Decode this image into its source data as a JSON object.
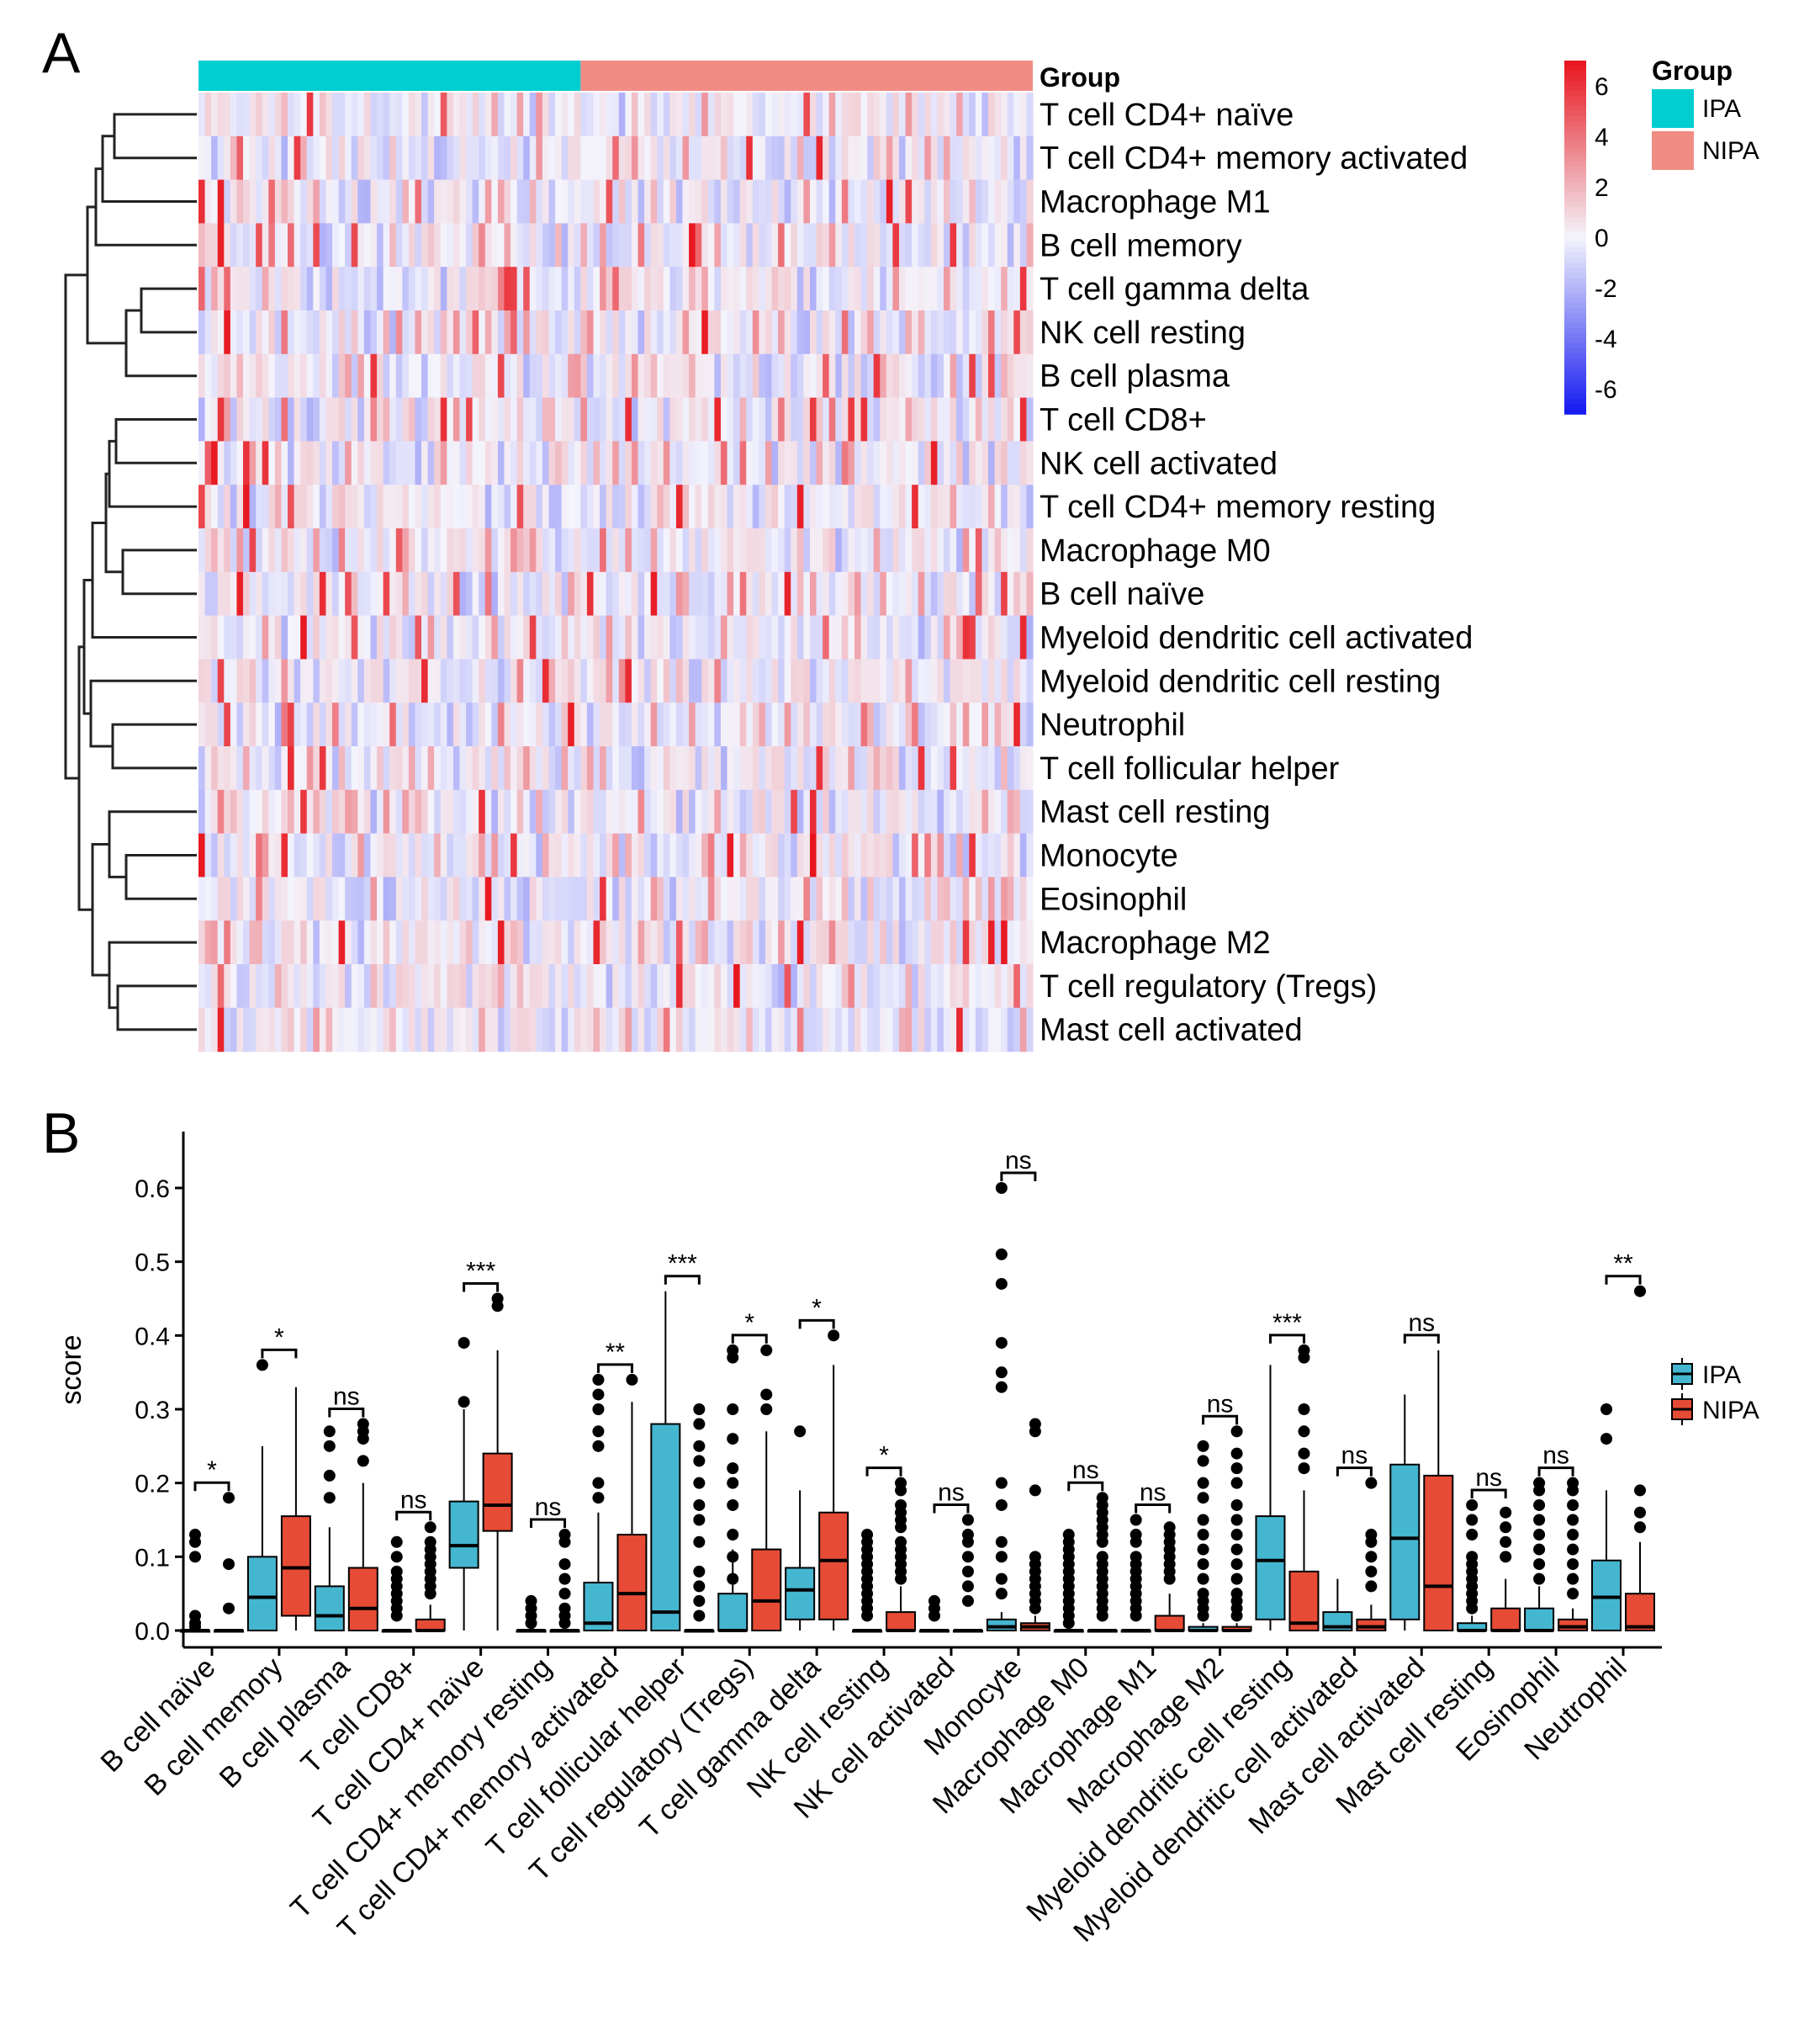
{
  "colors": {
    "ipa": "#00CED1",
    "nipa": "#F08C84",
    "box_ipa": "#45B6D0",
    "box_nipa": "#E64B35",
    "heat_high": "#E8141C",
    "heat_mid": "#F4F4FC",
    "heat_low": "#1419F0"
  },
  "chart_data": [
    {
      "panel": "A",
      "type": "heatmap",
      "annotation_label": "Group",
      "groups": [
        {
          "name": "IPA",
          "n_samples": 60
        },
        {
          "name": "NIPA",
          "n_samples": 71
        }
      ],
      "rows": [
        "T cell CD4+ naïve",
        "T cell CD4+ memory activated",
        "Macrophage M1",
        "B cell memory",
        "T cell gamma delta",
        "NK cell resting",
        "B cell plasma",
        "T cell CD8+",
        "NK cell activated",
        "T cell CD4+ memory resting",
        "Macrophage M0",
        "B cell naïve",
        "Myeloid dendritic cell activated",
        "Myeloid dendritic cell resting",
        "Neutrophil",
        "T cell follicular helper",
        "Mast cell resting",
        "Monocyte",
        "Eosinophil",
        "Macrophage M2",
        "T cell regulatory (Tregs)",
        "Mast cell activated"
      ],
      "color_scale": {
        "min": -7,
        "max": 7,
        "ticks": [
          "6",
          "4",
          "2",
          "0",
          "-2",
          "-4",
          "-6"
        ],
        "tick_values": [
          6,
          4,
          2,
          0,
          -2,
          -4,
          -6
        ]
      },
      "legend_title": "Group",
      "dendrogram": "hierarchical clustering of rows (left)"
    },
    {
      "panel": "B",
      "type": "box",
      "ylabel": "score",
      "ylim": [
        0,
        0.65
      ],
      "yticks": [
        "0.0",
        "0.1",
        "0.2",
        "0.3",
        "0.4",
        "0.5",
        "0.6"
      ],
      "ytick_values": [
        0,
        0.1,
        0.2,
        0.3,
        0.4,
        0.5,
        0.6
      ],
      "legend": [
        "IPA",
        "NIPA"
      ],
      "categories": [
        {
          "name": "B cell naïve",
          "sig": "*",
          "ipa": {
            "q1": 0,
            "med": 0,
            "q3": 0,
            "lo": 0,
            "hi": 0,
            "out": [
              0.13,
              0.12,
              0.1,
              0.02,
              0.01,
              0.005
            ]
          },
          "nipa": {
            "q1": 0,
            "med": 0,
            "q3": 0,
            "lo": 0,
            "hi": 0,
            "out": [
              0.18,
              0.09,
              0.03
            ]
          }
        },
        {
          "name": "B cell memory",
          "sig": "*",
          "ipa": {
            "q1": 0,
            "med": 0.045,
            "q3": 0.1,
            "lo": 0,
            "hi": 0.25,
            "out": [
              0.36
            ]
          },
          "nipa": {
            "q1": 0.02,
            "med": 0.085,
            "q3": 0.155,
            "lo": 0,
            "hi": 0.33,
            "out": []
          }
        },
        {
          "name": "B cell plasma",
          "sig": "ns",
          "ipa": {
            "q1": 0,
            "med": 0.02,
            "q3": 0.06,
            "lo": 0,
            "hi": 0.14,
            "out": [
              0.27,
              0.25,
              0.21,
              0.18
            ]
          },
          "nipa": {
            "q1": 0,
            "med": 0.03,
            "q3": 0.085,
            "lo": 0,
            "hi": 0.2,
            "out": [
              0.28,
              0.27,
              0.26,
              0.23
            ]
          }
        },
        {
          "name": "T cell CD8+",
          "sig": "ns",
          "ipa": {
            "q1": 0,
            "med": 0,
            "q3": 0,
            "lo": 0,
            "hi": 0,
            "out": [
              0.12,
              0.1,
              0.08,
              0.07,
              0.06,
              0.05,
              0.04,
              0.03,
              0.02
            ]
          },
          "nipa": {
            "q1": 0,
            "med": 0,
            "q3": 0.015,
            "lo": 0,
            "hi": 0.035,
            "out": [
              0.14,
              0.12,
              0.11,
              0.1,
              0.09,
              0.08,
              0.07,
              0.06,
              0.05
            ]
          }
        },
        {
          "name": "T cell CD4+ naïve",
          "sig": "***",
          "ipa": {
            "q1": 0.085,
            "med": 0.115,
            "q3": 0.175,
            "lo": 0,
            "hi": 0.3,
            "out": [
              0.39,
              0.31
            ]
          },
          "nipa": {
            "q1": 0.135,
            "med": 0.17,
            "q3": 0.24,
            "lo": 0,
            "hi": 0.38,
            "out": [
              0.45,
              0.44
            ]
          }
        },
        {
          "name": "T cell CD4+ memory resting",
          "sig": "ns",
          "ipa": {
            "q1": 0,
            "med": 0,
            "q3": 0,
            "lo": 0,
            "hi": 0,
            "out": [
              0.04,
              0.03,
              0.02,
              0.01
            ]
          },
          "nipa": {
            "q1": 0,
            "med": 0,
            "q3": 0,
            "lo": 0,
            "hi": 0,
            "out": [
              0.13,
              0.12,
              0.09,
              0.07,
              0.05,
              0.03,
              0.02,
              0.01
            ]
          }
        },
        {
          "name": "T cell CD4+ memory activated",
          "sig": "**",
          "ipa": {
            "q1": 0,
            "med": 0.01,
            "q3": 0.065,
            "lo": 0,
            "hi": 0.16,
            "out": [
              0.34,
              0.32,
              0.3,
              0.27,
              0.25,
              0.2,
              0.18
            ]
          },
          "nipa": {
            "q1": 0,
            "med": 0.05,
            "q3": 0.13,
            "lo": 0,
            "hi": 0.31,
            "out": [
              0.34
            ]
          }
        },
        {
          "name": "T cell follicular helper",
          "sig": "***",
          "ipa": {
            "q1": 0,
            "med": 0.025,
            "q3": 0.28,
            "lo": 0,
            "hi": 0.46,
            "out": []
          },
          "nipa": {
            "q1": 0,
            "med": 0,
            "q3": 0,
            "lo": 0,
            "hi": 0,
            "out": [
              0.3,
              0.28,
              0.25,
              0.23,
              0.2,
              0.17,
              0.15,
              0.12,
              0.08,
              0.06,
              0.04,
              0.02
            ]
          }
        },
        {
          "name": "T cell regulatory (Tregs)",
          "sig": "*",
          "ipa": {
            "q1": 0,
            "med": 0,
            "q3": 0.05,
            "lo": 0,
            "hi": 0.11,
            "out": [
              0.38,
              0.37,
              0.3,
              0.26,
              0.22,
              0.2,
              0.17,
              0.13,
              0.1,
              0.07
            ]
          },
          "nipa": {
            "q1": 0,
            "med": 0.04,
            "q3": 0.11,
            "lo": 0,
            "hi": 0.27,
            "out": [
              0.38,
              0.32,
              0.3
            ]
          }
        },
        {
          "name": "T cell gamma delta",
          "sig": "*",
          "ipa": {
            "q1": 0.015,
            "med": 0.055,
            "q3": 0.085,
            "lo": 0,
            "hi": 0.19,
            "out": [
              0.27
            ]
          },
          "nipa": {
            "q1": 0.015,
            "med": 0.095,
            "q3": 0.16,
            "lo": 0,
            "hi": 0.36,
            "out": [
              0.4
            ]
          }
        },
        {
          "name": "NK cell resting",
          "sig": "*",
          "ipa": {
            "q1": 0,
            "med": 0,
            "q3": 0,
            "lo": 0,
            "hi": 0,
            "out": [
              0.13,
              0.12,
              0.11,
              0.1,
              0.09,
              0.08,
              0.07,
              0.06,
              0.05,
              0.04,
              0.03,
              0.02
            ]
          },
          "nipa": {
            "q1": 0,
            "med": 0,
            "q3": 0.025,
            "lo": 0,
            "hi": 0.06,
            "out": [
              0.2,
              0.19,
              0.17,
              0.16,
              0.15,
              0.14,
              0.12,
              0.11,
              0.1,
              0.09,
              0.08,
              0.07
            ]
          }
        },
        {
          "name": "NK cell activated",
          "sig": "ns",
          "ipa": {
            "q1": 0,
            "med": 0,
            "q3": 0,
            "lo": 0,
            "hi": 0,
            "out": [
              0.04,
              0.03,
              0.02
            ]
          },
          "nipa": {
            "q1": 0,
            "med": 0,
            "q3": 0,
            "lo": 0,
            "hi": 0,
            "out": [
              0.15,
              0.13,
              0.12,
              0.1,
              0.08,
              0.06,
              0.04
            ]
          }
        },
        {
          "name": "Monocyte",
          "sig": "ns",
          "ipa": {
            "q1": 0,
            "med": 0.005,
            "q3": 0.015,
            "lo": 0,
            "hi": 0.025,
            "out": [
              0.6,
              0.51,
              0.47,
              0.39,
              0.35,
              0.33,
              0.2,
              0.17,
              0.12,
              0.1,
              0.07,
              0.05
            ]
          },
          "nipa": {
            "q1": 0,
            "med": 0.005,
            "q3": 0.01,
            "lo": 0,
            "hi": 0.02,
            "out": [
              0.28,
              0.27,
              0.19,
              0.1,
              0.09,
              0.08,
              0.07,
              0.06,
              0.05,
              0.04,
              0.03
            ]
          }
        },
        {
          "name": "Macrophage M0",
          "sig": "ns",
          "ipa": {
            "q1": 0,
            "med": 0,
            "q3": 0,
            "lo": 0,
            "hi": 0,
            "out": [
              0.13,
              0.12,
              0.11,
              0.1,
              0.09,
              0.08,
              0.07,
              0.06,
              0.05,
              0.04,
              0.03,
              0.02,
              0.01
            ]
          },
          "nipa": {
            "q1": 0,
            "med": 0,
            "q3": 0,
            "lo": 0,
            "hi": 0,
            "out": [
              0.18,
              0.17,
              0.16,
              0.15,
              0.14,
              0.13,
              0.12,
              0.1,
              0.09,
              0.08,
              0.07,
              0.06,
              0.05,
              0.04,
              0.03,
              0.02
            ]
          }
        },
        {
          "name": "Macrophage M1",
          "sig": "ns",
          "ipa": {
            "q1": 0,
            "med": 0,
            "q3": 0,
            "lo": 0,
            "hi": 0,
            "out": [
              0.15,
              0.13,
              0.12,
              0.1,
              0.09,
              0.08,
              0.07,
              0.06,
              0.05,
              0.04,
              0.03,
              0.02
            ]
          },
          "nipa": {
            "q1": 0,
            "med": 0,
            "q3": 0.02,
            "lo": 0,
            "hi": 0.05,
            "out": [
              0.14,
              0.13,
              0.12,
              0.11,
              0.1,
              0.09,
              0.08,
              0.07
            ]
          }
        },
        {
          "name": "Macrophage M2",
          "sig": "ns",
          "ipa": {
            "q1": 0,
            "med": 0,
            "q3": 0.005,
            "lo": 0,
            "hi": 0.01,
            "out": [
              0.25,
              0.23,
              0.2,
              0.18,
              0.15,
              0.13,
              0.11,
              0.09,
              0.07,
              0.05,
              0.04,
              0.03,
              0.02
            ]
          },
          "nipa": {
            "q1": 0,
            "med": 0,
            "q3": 0.005,
            "lo": 0,
            "hi": 0.01,
            "out": [
              0.27,
              0.24,
              0.22,
              0.2,
              0.17,
              0.15,
              0.13,
              0.11,
              0.09,
              0.07,
              0.05,
              0.04,
              0.03,
              0.02
            ]
          }
        },
        {
          "name": "Myeloid dendritic cell resting",
          "sig": "***",
          "ipa": {
            "q1": 0.015,
            "med": 0.095,
            "q3": 0.155,
            "lo": 0,
            "hi": 0.36,
            "out": []
          },
          "nipa": {
            "q1": 0,
            "med": 0.01,
            "q3": 0.08,
            "lo": 0,
            "hi": 0.19,
            "out": [
              0.38,
              0.37,
              0.3,
              0.27,
              0.24,
              0.22
            ]
          }
        },
        {
          "name": "Myeloid dendritic cell activated",
          "sig": "ns",
          "ipa": {
            "q1": 0,
            "med": 0.005,
            "q3": 0.025,
            "lo": 0,
            "hi": 0.07,
            "out": []
          },
          "nipa": {
            "q1": 0,
            "med": 0.005,
            "q3": 0.015,
            "lo": 0,
            "hi": 0.035,
            "out": [
              0.2,
              0.13,
              0.12,
              0.1,
              0.08,
              0.06
            ]
          }
        },
        {
          "name": "Mast cell activated",
          "sig": "ns",
          "ipa": {
            "q1": 0.015,
            "med": 0.125,
            "q3": 0.225,
            "lo": 0,
            "hi": 0.32,
            "out": []
          },
          "nipa": {
            "q1": 0,
            "med": 0.06,
            "q3": 0.21,
            "lo": 0,
            "hi": 0.38,
            "out": []
          }
        },
        {
          "name": "Mast cell resting",
          "sig": "ns",
          "ipa": {
            "q1": 0,
            "med": 0,
            "q3": 0.01,
            "lo": 0,
            "hi": 0.02,
            "out": [
              0.17,
              0.15,
              0.13,
              0.1,
              0.09,
              0.08,
              0.07,
              0.06,
              0.05,
              0.04,
              0.03
            ]
          },
          "nipa": {
            "q1": 0,
            "med": 0,
            "q3": 0.03,
            "lo": 0,
            "hi": 0.07,
            "out": [
              0.16,
              0.14,
              0.12,
              0.1
            ]
          }
        },
        {
          "name": "Eosinophil",
          "sig": "ns",
          "ipa": {
            "q1": 0,
            "med": 0,
            "q3": 0.03,
            "lo": 0,
            "hi": 0.06,
            "out": [
              0.2,
              0.19,
              0.17,
              0.15,
              0.13,
              0.11,
              0.09,
              0.07
            ]
          },
          "nipa": {
            "q1": 0,
            "med": 0.005,
            "q3": 0.015,
            "lo": 0,
            "hi": 0.03,
            "out": [
              0.2,
              0.19,
              0.17,
              0.15,
              0.13,
              0.11,
              0.09,
              0.07,
              0.05
            ]
          }
        },
        {
          "name": "Neutrophil",
          "sig": "**",
          "ipa": {
            "q1": 0,
            "med": 0.045,
            "q3": 0.095,
            "lo": 0,
            "hi": 0.19,
            "out": [
              0.3,
              0.26
            ]
          },
          "nipa": {
            "q1": 0,
            "med": 0.005,
            "q3": 0.05,
            "lo": 0,
            "hi": 0.12,
            "out": [
              0.46,
              0.19,
              0.16,
              0.14
            ]
          }
        }
      ]
    }
  ],
  "panel_labels": {
    "a": "A",
    "b": "B"
  }
}
